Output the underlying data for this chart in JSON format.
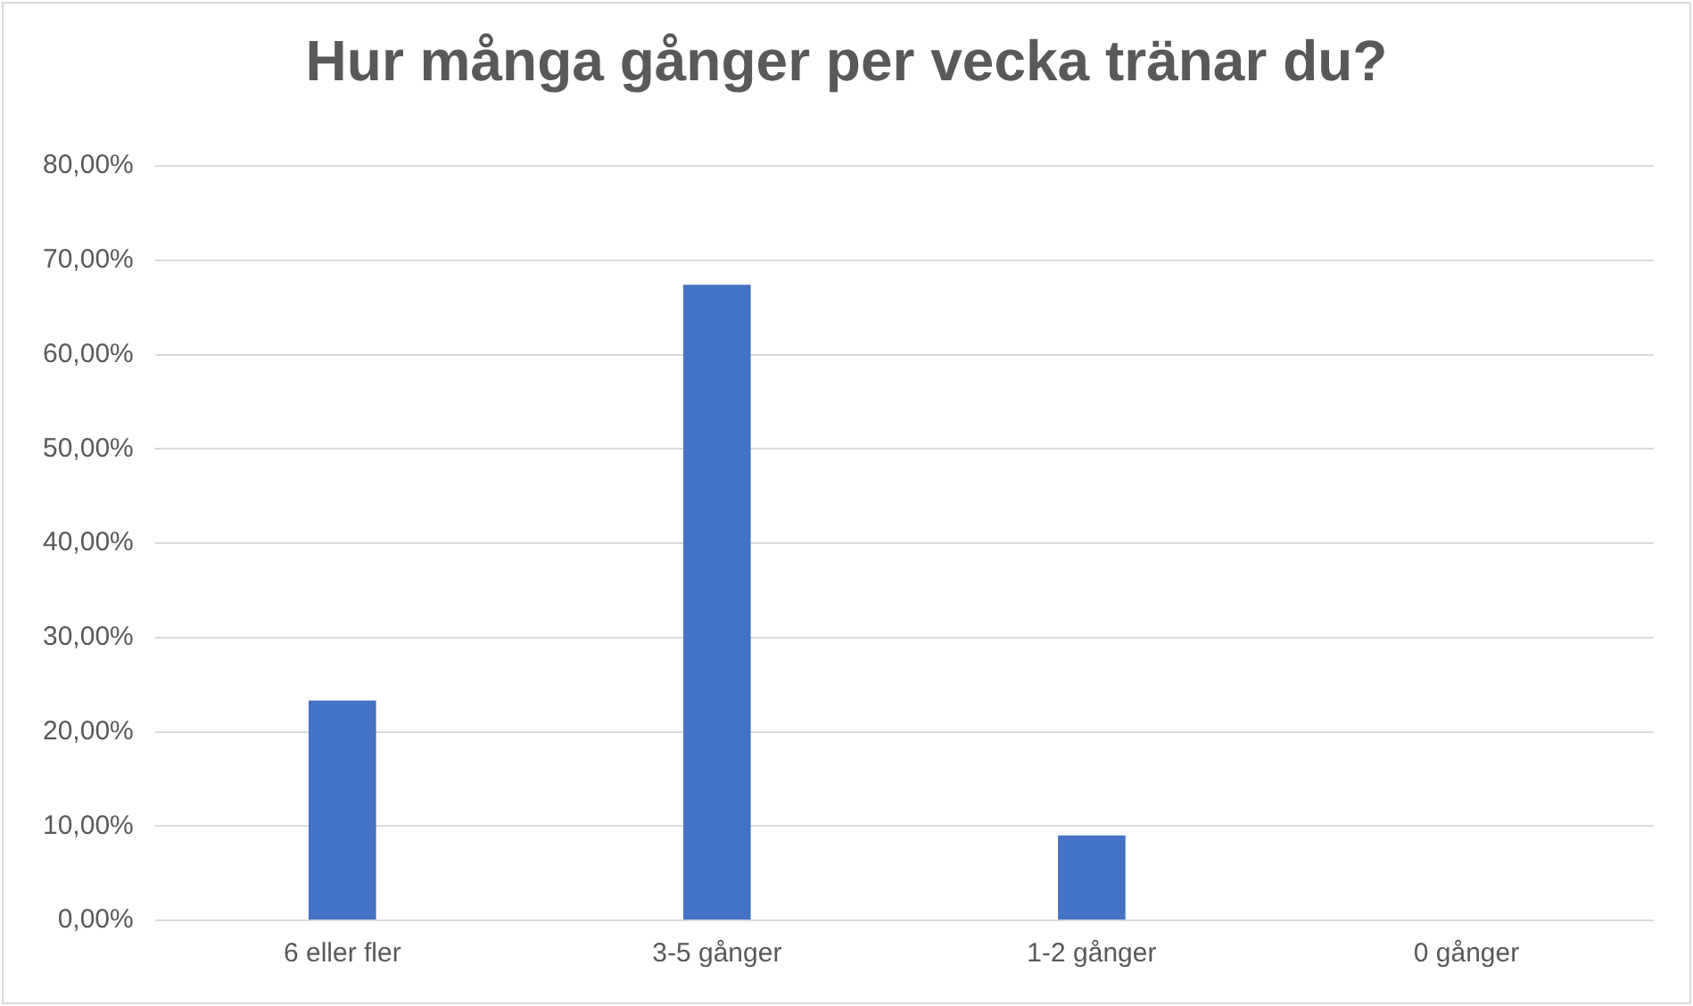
{
  "chart_data": {
    "type": "bar",
    "title": "Hur många gånger per vecka tränar du?",
    "categories": [
      "6 eller fler",
      "3-5 gånger",
      "1-2 gånger",
      "0 gånger"
    ],
    "values": [
      23.3,
      67.4,
      9.0,
      0
    ],
    "color": "#4472c4",
    "ylim": [
      0,
      80
    ],
    "yticks": [
      {
        "value": 0,
        "label": "0,00%"
      },
      {
        "value": 10,
        "label": "10,00%"
      },
      {
        "value": 20,
        "label": "20,00%"
      },
      {
        "value": 30,
        "label": "30,00%"
      },
      {
        "value": 40,
        "label": "40,00%"
      },
      {
        "value": 50,
        "label": "50,00%"
      },
      {
        "value": 60,
        "label": "60,00%"
      },
      {
        "value": 70,
        "label": "70,00%"
      },
      {
        "value": 80,
        "label": "80,00%"
      }
    ],
    "grid": "y"
  }
}
